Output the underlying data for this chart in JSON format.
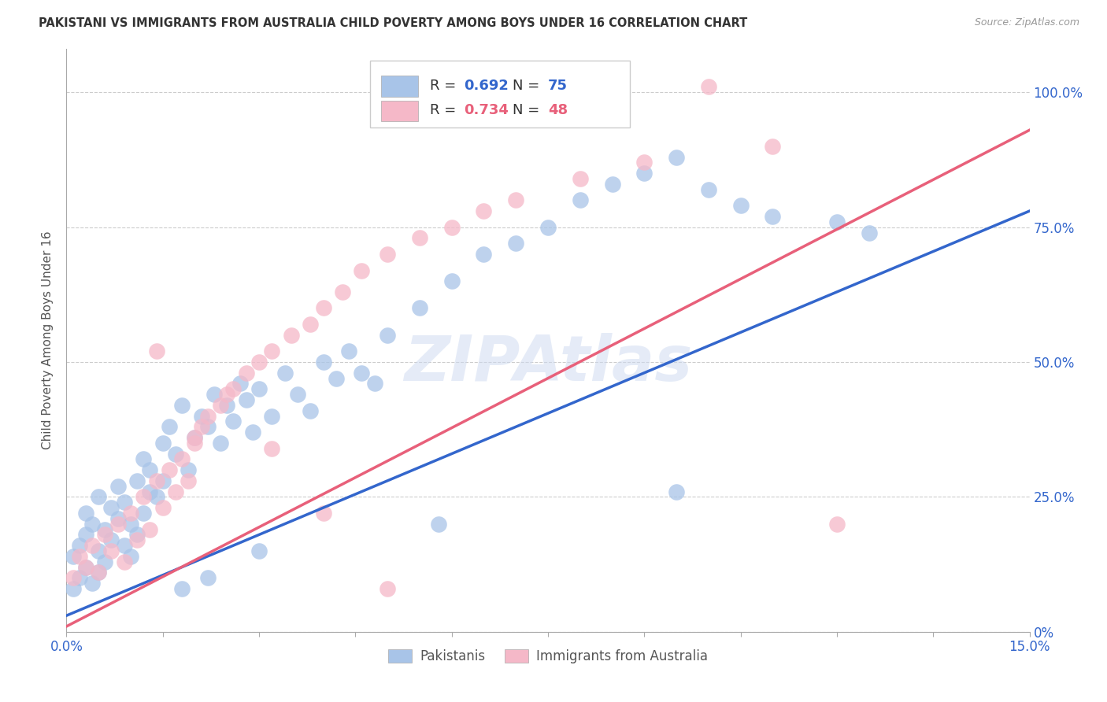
{
  "title": "PAKISTANI VS IMMIGRANTS FROM AUSTRALIA CHILD POVERTY AMONG BOYS UNDER 16 CORRELATION CHART",
  "source": "Source: ZipAtlas.com",
  "ylabel": "Child Poverty Among Boys Under 16",
  "watermark": "ZIPAtlas",
  "xmin": 0.0,
  "xmax": 0.15,
  "ymin": 0.0,
  "ymax": 1.08,
  "xticks": [
    0.0,
    0.015,
    0.03,
    0.045,
    0.06,
    0.075,
    0.09,
    0.105,
    0.12,
    0.135,
    0.15
  ],
  "xtick_labels_show": [
    "0.0%",
    "",
    "",
    "",
    "",
    "",
    "",
    "",
    "",
    "",
    "15.0%"
  ],
  "ytick_values_right": [
    0.0,
    0.25,
    0.5,
    0.75,
    1.0
  ],
  "ytick_labels_right": [
    "0%",
    "25.0%",
    "50.0%",
    "75.0%",
    "100.0%"
  ],
  "blue_R": "0.692",
  "blue_N": "75",
  "pink_R": "0.734",
  "pink_N": "48",
  "blue_color": "#a8c4e8",
  "pink_color": "#f5b8c8",
  "blue_line_color": "#3366cc",
  "pink_line_color": "#e8607a",
  "legend_label_blue": "Pakistanis",
  "legend_label_pink": "Immigrants from Australia",
  "blue_scatter_x": [
    0.001,
    0.001,
    0.002,
    0.002,
    0.003,
    0.003,
    0.003,
    0.004,
    0.004,
    0.005,
    0.005,
    0.005,
    0.006,
    0.006,
    0.007,
    0.007,
    0.008,
    0.008,
    0.009,
    0.009,
    0.01,
    0.01,
    0.011,
    0.011,
    0.012,
    0.012,
    0.013,
    0.013,
    0.014,
    0.015,
    0.015,
    0.016,
    0.017,
    0.018,
    0.019,
    0.02,
    0.021,
    0.022,
    0.023,
    0.024,
    0.025,
    0.026,
    0.027,
    0.028,
    0.029,
    0.03,
    0.032,
    0.034,
    0.036,
    0.038,
    0.04,
    0.042,
    0.044,
    0.046,
    0.048,
    0.05,
    0.055,
    0.06,
    0.065,
    0.07,
    0.075,
    0.08,
    0.085,
    0.09,
    0.095,
    0.1,
    0.105,
    0.11,
    0.12,
    0.125,
    0.095,
    0.058,
    0.03,
    0.022,
    0.018
  ],
  "blue_scatter_y": [
    0.08,
    0.14,
    0.1,
    0.16,
    0.12,
    0.18,
    0.22,
    0.09,
    0.2,
    0.15,
    0.11,
    0.25,
    0.13,
    0.19,
    0.17,
    0.23,
    0.21,
    0.27,
    0.16,
    0.24,
    0.14,
    0.2,
    0.18,
    0.28,
    0.22,
    0.32,
    0.26,
    0.3,
    0.25,
    0.35,
    0.28,
    0.38,
    0.33,
    0.42,
    0.3,
    0.36,
    0.4,
    0.38,
    0.44,
    0.35,
    0.42,
    0.39,
    0.46,
    0.43,
    0.37,
    0.45,
    0.4,
    0.48,
    0.44,
    0.41,
    0.5,
    0.47,
    0.52,
    0.48,
    0.46,
    0.55,
    0.6,
    0.65,
    0.7,
    0.72,
    0.75,
    0.8,
    0.83,
    0.85,
    0.88,
    0.82,
    0.79,
    0.77,
    0.76,
    0.74,
    0.26,
    0.2,
    0.15,
    0.1,
    0.08
  ],
  "pink_scatter_x": [
    0.001,
    0.002,
    0.003,
    0.004,
    0.005,
    0.006,
    0.007,
    0.008,
    0.009,
    0.01,
    0.011,
    0.012,
    0.013,
    0.014,
    0.015,
    0.016,
    0.017,
    0.018,
    0.019,
    0.02,
    0.021,
    0.022,
    0.024,
    0.026,
    0.028,
    0.03,
    0.032,
    0.035,
    0.038,
    0.04,
    0.043,
    0.046,
    0.05,
    0.055,
    0.06,
    0.065,
    0.07,
    0.08,
    0.09,
    0.1,
    0.11,
    0.12,
    0.014,
    0.02,
    0.025,
    0.032,
    0.04,
    0.05
  ],
  "pink_scatter_y": [
    0.1,
    0.14,
    0.12,
    0.16,
    0.11,
    0.18,
    0.15,
    0.2,
    0.13,
    0.22,
    0.17,
    0.25,
    0.19,
    0.28,
    0.23,
    0.3,
    0.26,
    0.32,
    0.28,
    0.35,
    0.38,
    0.4,
    0.42,
    0.45,
    0.48,
    0.5,
    0.52,
    0.55,
    0.57,
    0.6,
    0.63,
    0.67,
    0.7,
    0.73,
    0.75,
    0.78,
    0.8,
    0.84,
    0.87,
    1.01,
    0.9,
    0.2,
    0.52,
    0.36,
    0.44,
    0.34,
    0.22,
    0.08
  ],
  "blue_line_x": [
    0.0,
    0.15
  ],
  "blue_line_y": [
    0.03,
    0.78
  ],
  "pink_line_x": [
    0.0,
    0.15
  ],
  "pink_line_y": [
    0.01,
    0.93
  ]
}
